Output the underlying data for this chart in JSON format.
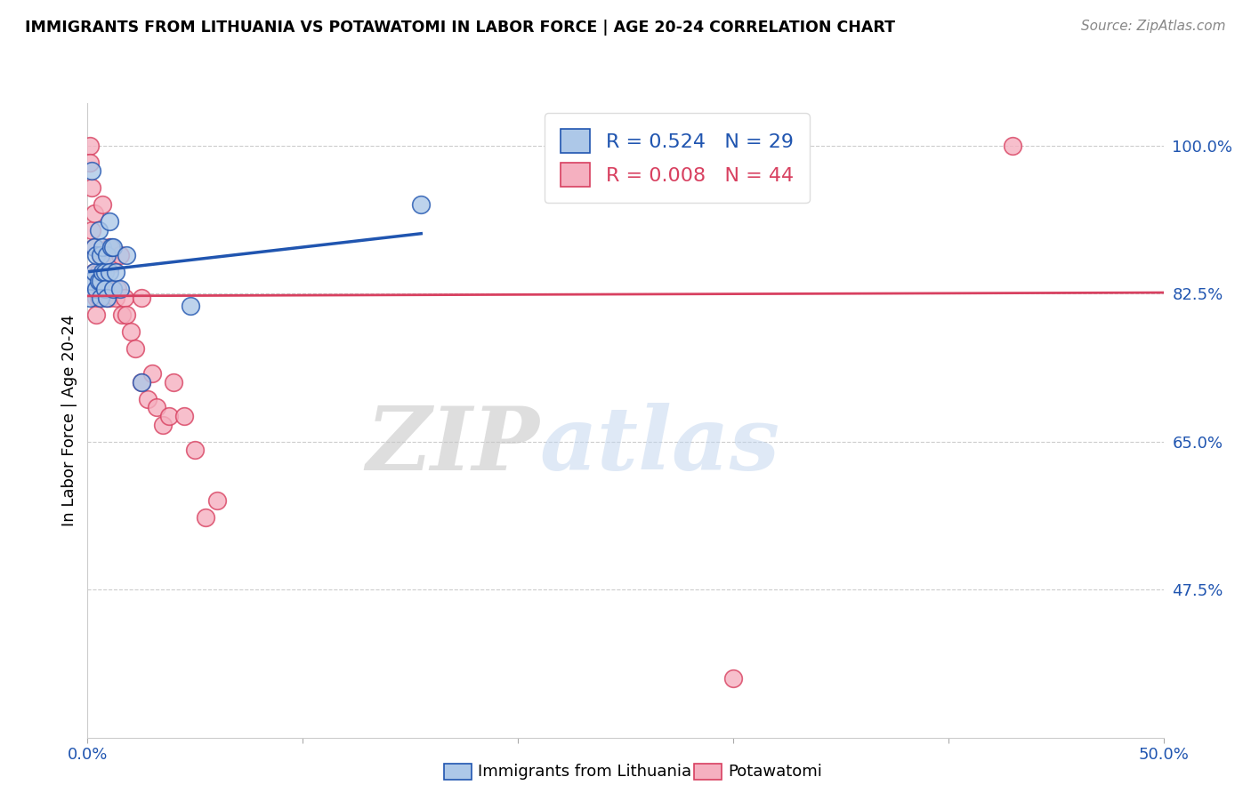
{
  "title": "IMMIGRANTS FROM LITHUANIA VS POTAWATOMI IN LABOR FORCE | AGE 20-24 CORRELATION CHART",
  "source": "Source: ZipAtlas.com",
  "ylabel": "In Labor Force | Age 20-24",
  "xlim": [
    0.0,
    0.5
  ],
  "ylim": [
    0.3,
    1.05
  ],
  "ytick_right_labels": [
    "100.0%",
    "82.5%",
    "65.0%",
    "47.5%"
  ],
  "ytick_right_values": [
    1.0,
    0.825,
    0.65,
    0.475
  ],
  "legend_labels": [
    "Immigrants from Lithuania",
    "Potawatomi"
  ],
  "R_lith": 0.524,
  "N_lith": 29,
  "R_pota": 0.008,
  "N_pota": 44,
  "lith_color": "#adc8e8",
  "pota_color": "#f5b0c0",
  "lith_line_color": "#2055b0",
  "pota_line_color": "#d84060",
  "watermark_zip": "ZIP",
  "watermark_atlas": "atlas",
  "lith_x": [
    0.001,
    0.002,
    0.002,
    0.003,
    0.003,
    0.004,
    0.004,
    0.005,
    0.005,
    0.006,
    0.006,
    0.006,
    0.007,
    0.007,
    0.008,
    0.008,
    0.009,
    0.009,
    0.01,
    0.01,
    0.011,
    0.012,
    0.012,
    0.013,
    0.015,
    0.018,
    0.025,
    0.048,
    0.155
  ],
  "lith_y": [
    0.82,
    0.97,
    0.84,
    0.88,
    0.85,
    0.87,
    0.83,
    0.9,
    0.84,
    0.87,
    0.84,
    0.82,
    0.88,
    0.85,
    0.85,
    0.83,
    0.87,
    0.82,
    0.91,
    0.85,
    0.88,
    0.88,
    0.83,
    0.85,
    0.83,
    0.87,
    0.72,
    0.81,
    0.93
  ],
  "pota_x": [
    0.001,
    0.001,
    0.002,
    0.002,
    0.003,
    0.003,
    0.003,
    0.004,
    0.004,
    0.004,
    0.005,
    0.005,
    0.006,
    0.006,
    0.007,
    0.007,
    0.008,
    0.009,
    0.01,
    0.01,
    0.011,
    0.012,
    0.013,
    0.014,
    0.015,
    0.016,
    0.017,
    0.018,
    0.02,
    0.022,
    0.025,
    0.025,
    0.028,
    0.03,
    0.032,
    0.035,
    0.038,
    0.04,
    0.045,
    0.05,
    0.055,
    0.06,
    0.3,
    0.43
  ],
  "pota_y": [
    1.0,
    0.98,
    0.95,
    0.9,
    0.92,
    0.88,
    0.85,
    0.83,
    0.82,
    0.8,
    0.85,
    0.82,
    0.87,
    0.83,
    0.93,
    0.86,
    0.83,
    0.82,
    0.88,
    0.82,
    0.86,
    0.83,
    0.82,
    0.83,
    0.87,
    0.8,
    0.82,
    0.8,
    0.78,
    0.76,
    0.82,
    0.72,
    0.7,
    0.73,
    0.69,
    0.67,
    0.68,
    0.72,
    0.68,
    0.64,
    0.56,
    0.58,
    0.37,
    1.0
  ],
  "lith_trendline_x": [
    0.001,
    0.155
  ],
  "pota_trendline_x": [
    0.0,
    0.5
  ],
  "pota_trendline_y": [
    0.822,
    0.826
  ]
}
